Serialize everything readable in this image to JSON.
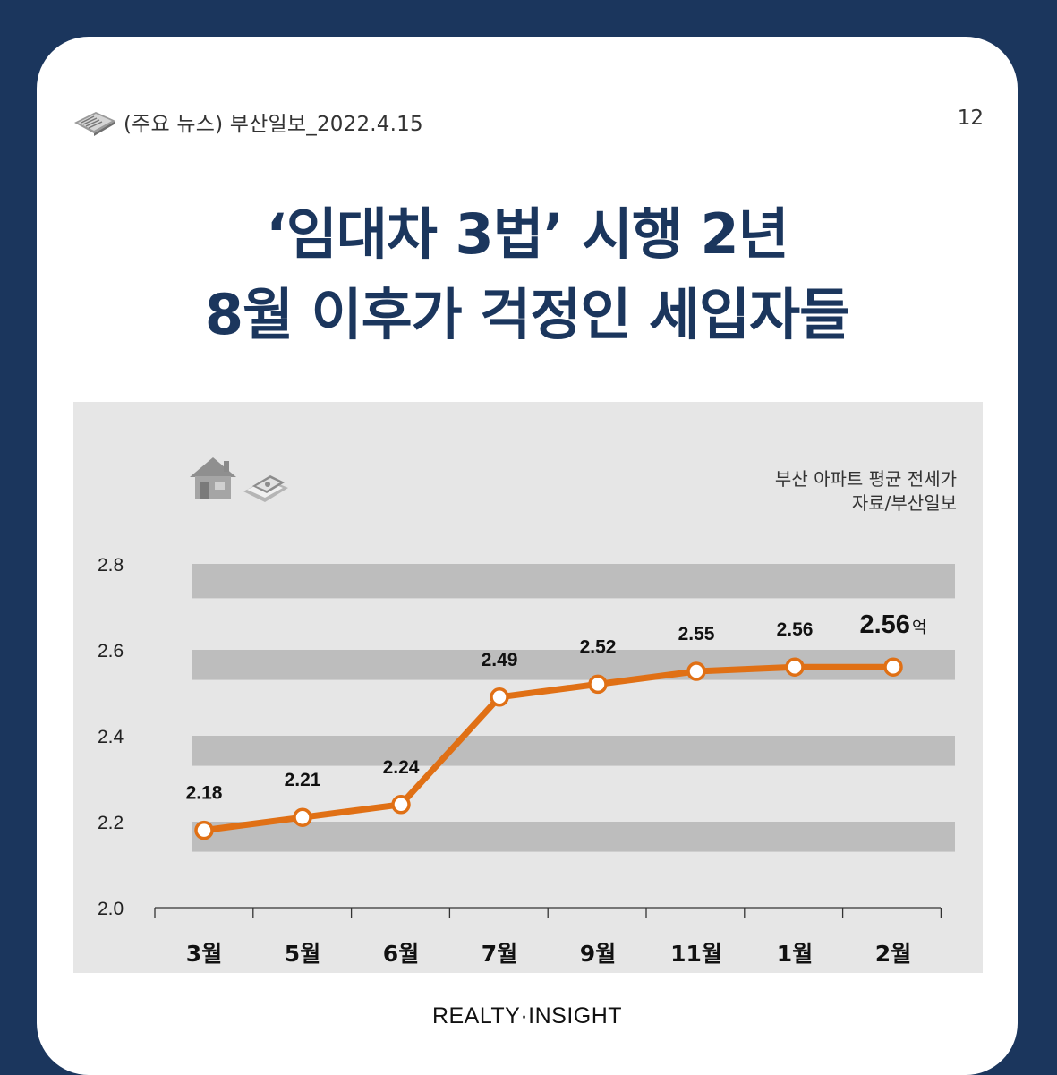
{
  "header": {
    "source": "(주요 뉴스) 부산일보_2022.4.15",
    "page_number": "12"
  },
  "headline": {
    "line1": "‘임대차 3법’ 시행 2년",
    "line2": "8월 이후가 걱정인 세입자들"
  },
  "chart_label": {
    "line1": "부산 아파트 평균 전세가",
    "line2": "자료/부산일보"
  },
  "footer": {
    "brand": "REALTY·INSIGHT"
  },
  "colors": {
    "background": "#1b365d",
    "title": "#1b365d",
    "line": "#e07015",
    "band": "#bdbdbd",
    "panel": "#e6e6e6"
  },
  "icons": [
    "newspaper-icon",
    "house-icon",
    "money-icon"
  ],
  "chart_data": {
    "type": "line",
    "categories": [
      "3월",
      "5월",
      "6월",
      "7월",
      "9월",
      "11월",
      "1월",
      "2월"
    ],
    "values": [
      2.18,
      2.21,
      2.24,
      2.49,
      2.52,
      2.55,
      2.56,
      2.56
    ],
    "value_labels": [
      "2.18",
      "2.21",
      "2.24",
      "2.49",
      "2.52",
      "2.55",
      "2.56",
      "2.56"
    ],
    "last_value_unit": "억",
    "y_ticks": [
      "2.0",
      "2.2",
      "2.4",
      "2.6",
      "2.8"
    ],
    "ylim": [
      2.0,
      2.8
    ],
    "title": "부산 아파트 평균 전세가",
    "grid": "alternating bands"
  }
}
